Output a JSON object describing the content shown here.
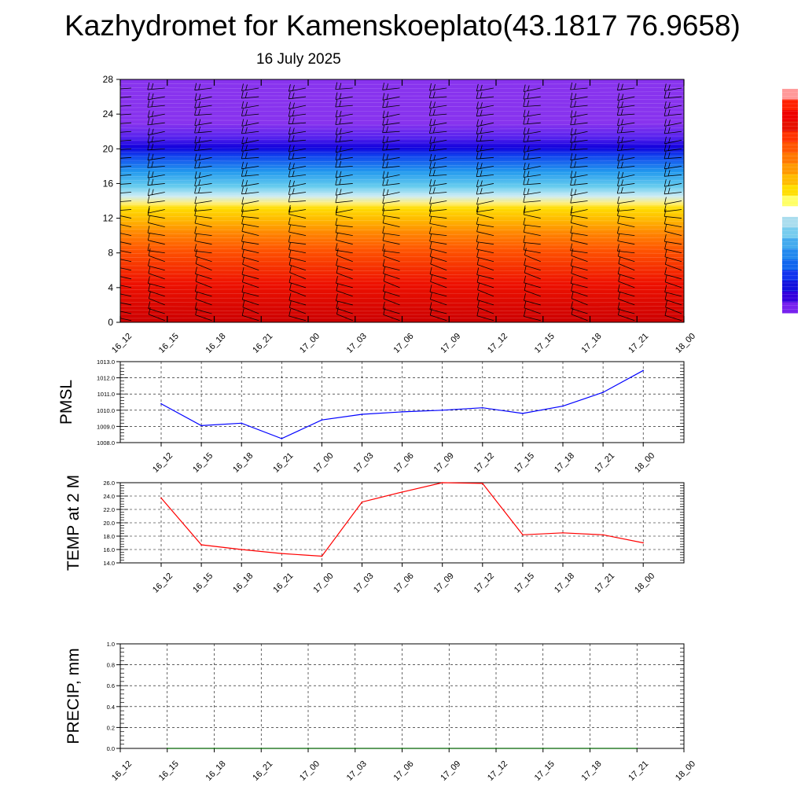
{
  "title": "Kazhydromet for Kamenskoeplato(43.1817 76.9658)",
  "date_label": "16 July 2025",
  "colors": {
    "pmsl_line": "#0000ff",
    "temp_line": "#ff0000",
    "precip_line": "#006400",
    "wind_barb": "#000000",
    "gradient_stops": [
      "#cc0000",
      "#ee1100",
      "#ff5500",
      "#ff8800",
      "#ffbb00",
      "#ffdd00",
      "#ffee77",
      "#ccecf5",
      "#66ccee",
      "#2299ee",
      "#1144ee",
      "#1100dd",
      "#5522ee",
      "#8833ee"
    ]
  },
  "chart_data": [
    {
      "type": "heatmap",
      "name": "",
      "x_categories": [
        "16_12",
        "16_15",
        "16_18",
        "16_21",
        "17_00",
        "17_03",
        "17_06",
        "17_09",
        "17_12",
        "17_15",
        "17_18",
        "17_21",
        "18_00"
      ],
      "yticks": [
        "0",
        "4",
        "8",
        "12",
        "16",
        "20",
        "24",
        "28"
      ],
      "ylim": [
        0,
        28
      ],
      "xlabel": "",
      "ylabel": "",
      "legend": "colorbar right, unlabeled",
      "barb_levels": [
        0.2,
        1,
        2,
        3,
        4,
        5,
        6,
        7,
        8,
        9,
        10,
        11,
        12,
        13,
        14,
        15,
        16,
        17,
        18,
        19,
        20,
        21,
        22,
        23,
        24,
        25,
        26,
        27
      ]
    },
    {
      "type": "line",
      "name": "PMSL",
      "ylabel": "PMSL",
      "x": [
        "16_12",
        "16_15",
        "16_18",
        "16_21",
        "17_00",
        "17_03",
        "17_06",
        "17_09",
        "17_12",
        "17_15",
        "17_18",
        "17_21",
        "18_00"
      ],
      "xtick_labels": [
        "16_12",
        "16_15",
        "16_18",
        "16_21",
        "17_00",
        "17_03",
        "17_06",
        "17_09",
        "17_12",
        "17_15",
        "17_18",
        "17_21",
        "18_00"
      ],
      "values": [
        1010.4,
        1009.05,
        1009.2,
        1008.25,
        1009.4,
        1009.75,
        1009.9,
        1010.0,
        1010.15,
        1009.8,
        1010.25,
        1011.1,
        1012.45
      ],
      "ylim": [
        1008.0,
        1013.0
      ],
      "yticks": [
        "1008.0",
        "1009.0",
        "1010.0",
        "1011.0",
        "1012.0",
        "1013.0"
      ],
      "grid": true
    },
    {
      "type": "line",
      "name": "TEMP at 2 M",
      "ylabel": "TEMP at 2 M",
      "x": [
        "16_12",
        "16_15",
        "16_18",
        "16_21",
        "17_00",
        "17_03",
        "17_06",
        "17_09",
        "17_12",
        "17_15",
        "17_18",
        "17_21",
        "18_00"
      ],
      "xtick_labels": [
        "16_12",
        "16_15",
        "16_18",
        "16_21",
        "17_00",
        "17_03",
        "17_06",
        "17_09",
        "17_12",
        "17_15",
        "17_18",
        "17_21",
        "18_00"
      ],
      "values": [
        23.7,
        16.7,
        16.0,
        15.4,
        15.0,
        23.1,
        24.6,
        26.0,
        25.9,
        18.2,
        18.5,
        18.2,
        17.0
      ],
      "ylim": [
        14.0,
        26.0
      ],
      "yticks": [
        "14.0",
        "16.0",
        "18.0",
        "20.0",
        "22.0",
        "24.0",
        "26.0"
      ],
      "grid": true
    },
    {
      "type": "line",
      "name": "PRECIP, mm",
      "ylabel": "PRECIP, mm",
      "x": [
        "16_15",
        "16_18",
        "16_21",
        "17_00",
        "17_03",
        "17_06",
        "17_09",
        "17_12",
        "17_15",
        "17_18",
        "17_21"
      ],
      "xtick_labels": [
        "16_12",
        "16_15",
        "16_18",
        "16_21",
        "17_00",
        "17_03",
        "17_06",
        "17_09",
        "17_12",
        "17_15",
        "17_18",
        "17_21",
        "18_00"
      ],
      "values": [
        0,
        0,
        0,
        0,
        0,
        0,
        0,
        0,
        0,
        0,
        0
      ],
      "ylim": [
        0,
        1.0
      ],
      "yticks": [
        "0.0",
        "0.2",
        "0.4",
        "0.6",
        "0.8",
        "1.0"
      ],
      "grid": true
    }
  ]
}
